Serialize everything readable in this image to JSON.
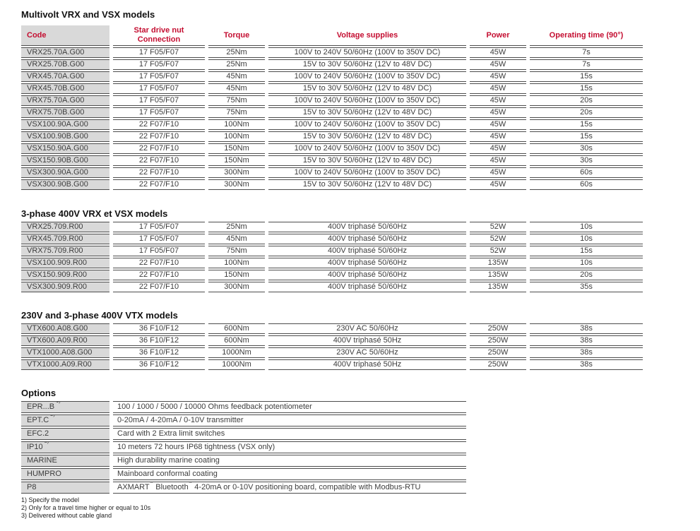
{
  "theme": {
    "accent_red": "#c40e31",
    "cell_gray": "#d9d9d9",
    "border_gray": "#4d4d4d"
  },
  "sections": [
    {
      "title": "Multivolt VRX and VSX models",
      "headers": [
        "Code",
        "Star drive nut Connection",
        "Torque",
        "Voltage supplies",
        "Power",
        "Operating time (90°)"
      ],
      "rows": [
        [
          "VRX25.70A.G00",
          "17 F05/F07",
          "25Nm",
          "100V to 240V 50/60Hz (100V to 350V DC)",
          "45W",
          "7s"
        ],
        [
          "VRX25.70B.G00",
          "17 F05/F07",
          "25Nm",
          "15V to 30V 50/60Hz (12V to 48V DC)",
          "45W",
          "7s"
        ],
        [
          "VRX45.70A.G00",
          "17 F05/F07",
          "45Nm",
          "100V to 240V 50/60Hz (100V to 350V DC)",
          "45W",
          "15s"
        ],
        [
          "VRX45.70B.G00",
          "17 F05/F07",
          "45Nm",
          "15V to 30V 50/60Hz (12V to 48V DC)",
          "45W",
          "15s"
        ],
        [
          "VRX75.70A.G00",
          "17 F05/F07",
          "75Nm",
          "100V to 240V 50/60Hz (100V to 350V DC)",
          "45W",
          "20s"
        ],
        [
          "VRX75.70B.G00",
          "17 F05/F07",
          "75Nm",
          "15V to 30V 50/60Hz (12V to 48V DC)",
          "45W",
          "20s"
        ],
        [
          "VSX100.90A.G00",
          "22 F07/F10",
          "100Nm",
          "100V to 240V 50/60Hz (100V to 350V DC)",
          "45W",
          "15s"
        ],
        [
          "VSX100.90B.G00",
          "22 F07/F10",
          "100Nm",
          "15V to 30V 50/60Hz (12V to 48V DC)",
          "45W",
          "15s"
        ],
        [
          "VSX150.90A.G00",
          "22 F07/F10",
          "150Nm",
          "100V to 240V 50/60Hz (100V to 350V DC)",
          "45W",
          "30s"
        ],
        [
          "VSX150.90B.G00",
          "22 F07/F10",
          "150Nm",
          "15V to 30V 50/60Hz (12V to 48V DC)",
          "45W",
          "30s"
        ],
        [
          "VSX300.90A.G00",
          "22 F07/F10",
          "300Nm",
          "100V to 240V 50/60Hz (100V to 350V DC)",
          "45W",
          "60s"
        ],
        [
          "VSX300.90B.G00",
          "22 F07/F10",
          "300Nm",
          "15V to 30V 50/60Hz (12V to 48V DC)",
          "45W",
          "60s"
        ]
      ]
    },
    {
      "title": "3-phase 400V VRX et VSX models",
      "headers": null,
      "rows": [
        [
          "VRX25.709.R00",
          "17 F05/F07",
          "25Nm",
          "400V triphasé 50/60Hz",
          "52W",
          "10s"
        ],
        [
          "VRX45.709.R00",
          "17 F05/F07",
          "45Nm",
          "400V triphasé 50/60Hz",
          "52W",
          "10s"
        ],
        [
          "VRX75.709.R00",
          "17 F05/F07",
          "75Nm",
          "400V triphasé 50/60Hz",
          "52W",
          "15s"
        ],
        [
          "VSX100.909.R00",
          "22 F07/F10",
          "100Nm",
          "400V triphasé 50/60Hz",
          "135W",
          "10s"
        ],
        [
          "VSX150.909.R00",
          "22 F07/F10",
          "150Nm",
          "400V triphasé 50/60Hz",
          "135W",
          "20s"
        ],
        [
          "VSX300.909.R00",
          "22 F07/F10",
          "300Nm",
          "400V triphasé 50/60Hz",
          "135W",
          "35s"
        ]
      ]
    },
    {
      "title": "230V and 3-phase 400V VTX models",
      "headers": null,
      "rows": [
        [
          "VTX600.A08.G00",
          "36 F10/F12",
          "600Nm",
          "230V AC 50/60Hz",
          "250W",
          "38s"
        ],
        [
          "VTX600.A09.R00",
          "36 F10/F12",
          "600Nm",
          "400V triphasé 50Hz",
          "250W",
          "38s"
        ],
        [
          "VTX1000.A08.G00",
          "36 F10/F12",
          "1000Nm",
          "230V AC 50/60Hz",
          "250W",
          "38s"
        ],
        [
          "VTX1000.A09.R00",
          "36 F10/F12",
          "1000Nm",
          "400V triphasé 50Hz",
          "250W",
          "38s"
        ]
      ]
    }
  ],
  "options": {
    "title": "Options",
    "rows": [
      {
        "code": "EPR...B",
        "sup": "1)",
        "desc": [
          {
            "t": "100 / 1000 / 5000 / 10000 Ohms feedback potentiometer"
          }
        ]
      },
      {
        "code": "EPT.C",
        "sup": "2)",
        "desc": [
          {
            "t": "0-20mA / 4-20mA / 0-10V transmitter"
          }
        ]
      },
      {
        "code": "EFC.2",
        "sup": "",
        "desc": [
          {
            "t": "Card with 2 Extra limit switches"
          }
        ]
      },
      {
        "code": "IP10",
        "sup": "3)",
        "desc": [
          {
            "t": "10 meters 72 hours IP68 tightness (VSX only)"
          }
        ]
      },
      {
        "code": "MARINE",
        "sup": "",
        "desc": [
          {
            "t": "High durability marine coating"
          }
        ]
      },
      {
        "code": "HUMPRO",
        "sup": "",
        "desc": [
          {
            "t": "Mainboard conformal coating"
          }
        ]
      },
      {
        "code": "P8",
        "sup": "",
        "desc": [
          {
            "t": "AXMART"
          },
          {
            "s": "®"
          },
          {
            "t": " Bluetooth"
          },
          {
            "s": "®"
          },
          {
            "t": " 4-20mA or 0-10V positioning board, compatible with Modbus-RTU"
          }
        ]
      }
    ]
  },
  "footnotes": [
    "1) Specify the model",
    "2) Only for a travel time higher or equal to 10s",
    "3) Delivered without cable gland"
  ]
}
